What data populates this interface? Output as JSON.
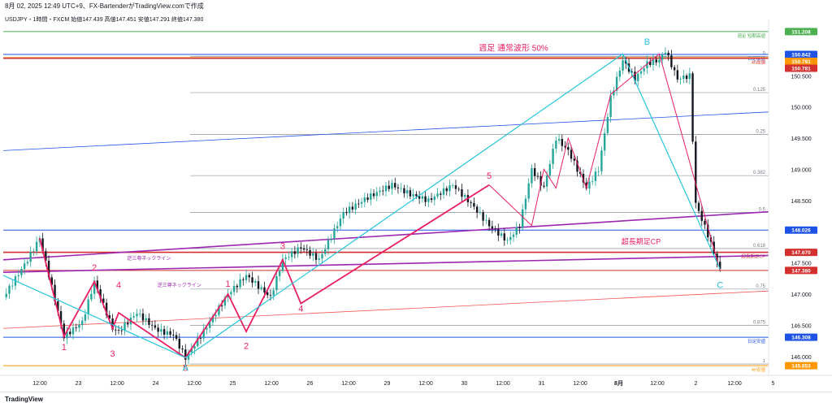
{
  "header": {
    "top_text": "8月 02, 2025 12:49 UTC+9、FX-BartenderがTradingView.comで作成",
    "symbol_line": "USDJPY・1時間・FXCM  始値147.439  高値147.451  安値147.291  終値147.380"
  },
  "footer": {
    "logo_text": "TradingView"
  },
  "colors": {
    "candle_up": "#26a69a",
    "candle_down": "#131722",
    "wave_pink": "#e91e63",
    "cyan": "#26c6da",
    "purple": "#9c27b0",
    "red": "#d32f2f",
    "blue": "#1e53e5",
    "orange": "#ff9800",
    "green": "#4caf50"
  },
  "chart_data": {
    "type": "candlestick",
    "symbol": "USDJPY",
    "timeframe": "1時間",
    "ylim": [
      145.75,
      151.35
    ],
    "x_tick_labels": [
      "12:00",
      "23",
      "12:00",
      "24",
      "12:00",
      "25",
      "12:00",
      "26",
      "12:00",
      "29",
      "12:00",
      "30",
      "12:00",
      "31",
      "12:00",
      "8月",
      "12:00",
      "2",
      "12:00",
      "5"
    ],
    "price_path": [
      {
        "t": 0,
        "p": 146.95
      },
      {
        "t": 4,
        "p": 147.55
      },
      {
        "t": 6,
        "p": 147.9
      },
      {
        "t": 10,
        "p": 146.32
      },
      {
        "t": 13,
        "p": 146.55
      },
      {
        "t": 15,
        "p": 147.2
      },
      {
        "t": 18,
        "p": 146.45
      },
      {
        "t": 19,
        "p": 146.4
      },
      {
        "t": 22,
        "p": 146.7
      },
      {
        "t": 25,
        "p": 146.45
      },
      {
        "t": 26,
        "p": 146.4
      },
      {
        "t": 28,
        "p": 146.35
      },
      {
        "t": 30,
        "p": 145.98
      },
      {
        "t": 33,
        "p": 146.4
      },
      {
        "t": 37,
        "p": 147.0
      },
      {
        "t": 40,
        "p": 147.3
      },
      {
        "t": 44,
        "p": 146.95
      },
      {
        "t": 46,
        "p": 147.55
      },
      {
        "t": 49,
        "p": 147.75
      },
      {
        "t": 52,
        "p": 147.55
      },
      {
        "t": 56,
        "p": 148.3
      },
      {
        "t": 60,
        "p": 148.55
      },
      {
        "t": 64,
        "p": 148.75
      },
      {
        "t": 67,
        "p": 148.6
      },
      {
        "t": 70,
        "p": 148.5
      },
      {
        "t": 74,
        "p": 148.75
      },
      {
        "t": 77,
        "p": 148.45
      },
      {
        "t": 80,
        "p": 148.1
      },
      {
        "t": 83,
        "p": 147.85
      },
      {
        "t": 85,
        "p": 148.1
      },
      {
        "t": 87,
        "p": 149.0
      },
      {
        "t": 89,
        "p": 148.7
      },
      {
        "t": 91,
        "p": 149.5
      },
      {
        "t": 93,
        "p": 149.3
      },
      {
        "t": 96,
        "p": 148.7
      },
      {
        "t": 98,
        "p": 149.0
      },
      {
        "t": 100,
        "p": 150.15
      },
      {
        "t": 102,
        "p": 150.75
      },
      {
        "t": 104,
        "p": 150.45
      },
      {
        "t": 106,
        "p": 150.7
      },
      {
        "t": 108,
        "p": 150.75
      },
      {
        "t": 109,
        "p": 150.9
      },
      {
        "t": 111,
        "p": 150.45
      },
      {
        "t": 113,
        "p": 150.5
      },
      {
        "t": 114,
        "p": 148.45
      },
      {
        "t": 116,
        "p": 147.95
      },
      {
        "t": 118,
        "p": 147.38
      }
    ],
    "horizontal_levels": [
      {
        "price": 151.208,
        "label": "151.208",
        "note": "週足 短期高値",
        "color": "#4caf50"
      },
      {
        "price": 150.842,
        "label": "150.842",
        "note": "日足高値",
        "color": "#1e53e5"
      },
      {
        "price": 150.791,
        "label": "150.791",
        "note": "",
        "color": "#ff9800"
      },
      {
        "price": 150.781,
        "label": "150.781",
        "note": "4h高値",
        "color": "#d32f2f"
      },
      {
        "price": 148.026,
        "label": "148.026",
        "note": "",
        "color": "#1e53e5"
      },
      {
        "price": 147.67,
        "label": "147.670",
        "note": "超長期足CP",
        "color": "#d32f2f"
      },
      {
        "price": 147.38,
        "label": "147.380",
        "note": "",
        "color": "#d32f2f"
      },
      {
        "price": 146.308,
        "label": "146.308",
        "note": "日足安値",
        "color": "#1e53e5"
      },
      {
        "price": 145.853,
        "label": "145.853",
        "note": "4h安値",
        "color": "#ff9800"
      }
    ],
    "y_tick_labels": [
      {
        "price": 150.5,
        "label": "150.500"
      },
      {
        "price": 150.0,
        "label": "150.000"
      },
      {
        "price": 149.5,
        "label": "149.500"
      },
      {
        "price": 149.0,
        "label": "149.000"
      },
      {
        "price": 148.5,
        "label": "148.500"
      },
      {
        "price": 147.5,
        "label": "147.500"
      },
      {
        "price": 147.0,
        "label": "147.000"
      },
      {
        "price": 146.5,
        "label": "146.500"
      },
      {
        "price": 146.0,
        "label": "146.000"
      }
    ],
    "fib_levels": [
      {
        "price": 150.81,
        "label": "0"
      },
      {
        "price": 150.23,
        "label": "0.125"
      },
      {
        "price": 149.56,
        "label": "0.25"
      },
      {
        "price": 148.9,
        "label": "0.382"
      },
      {
        "price": 148.31,
        "label": "0.5"
      },
      {
        "price": 147.73,
        "label": "0.618"
      },
      {
        "price": 147.08,
        "label": "0.75"
      },
      {
        "price": 146.5,
        "label": "0.875"
      },
      {
        "price": 145.88,
        "label": "1"
      }
    ],
    "wave_labels": [
      {
        "text": "1",
        "t": 10,
        "p": 146.1,
        "color": "#e91e63"
      },
      {
        "text": "2",
        "t": 15,
        "p": 147.38,
        "color": "#e91e63"
      },
      {
        "text": "3",
        "t": 18,
        "p": 146.0,
        "color": "#e91e63"
      },
      {
        "text": "4",
        "t": 19,
        "p": 147.1,
        "color": "#e91e63"
      },
      {
        "text": "5",
        "t": 30,
        "p": 145.77,
        "color": "#e91e63"
      },
      {
        "text": "1",
        "t": 37,
        "p": 147.12,
        "color": "#e91e63"
      },
      {
        "text": "2",
        "t": 40,
        "p": 146.12,
        "color": "#e91e63"
      },
      {
        "text": "3",
        "t": 46,
        "p": 147.72,
        "color": "#e91e63"
      },
      {
        "text": "4",
        "t": 49,
        "p": 146.72,
        "color": "#e91e63"
      },
      {
        "text": "5",
        "t": 80,
        "p": 148.85,
        "color": "#e91e63"
      },
      {
        "text": "B",
        "t": 106,
        "p": 151.0,
        "color": "#26c6da"
      },
      {
        "text": "C",
        "t": 118,
        "p": 147.1,
        "color": "#26c6da"
      },
      {
        "text": "A",
        "t": 30,
        "p": 145.77,
        "color": "#26c6da"
      }
    ],
    "annotations": [
      {
        "text": "週足 通常波形 50%",
        "t": 84,
        "p": 150.9,
        "color": "#e91e63"
      },
      {
        "text": "超長期足CP",
        "t": 105,
        "p": 147.8,
        "color": "#e91e63"
      },
      {
        "text": "逆三尊ネックライン",
        "t": 24,
        "p": 147.55,
        "color": "#9c27b0"
      },
      {
        "text": "逆三尊ネックライン",
        "t": 29,
        "p": 147.12,
        "color": "#9c27b0"
      }
    ]
  }
}
